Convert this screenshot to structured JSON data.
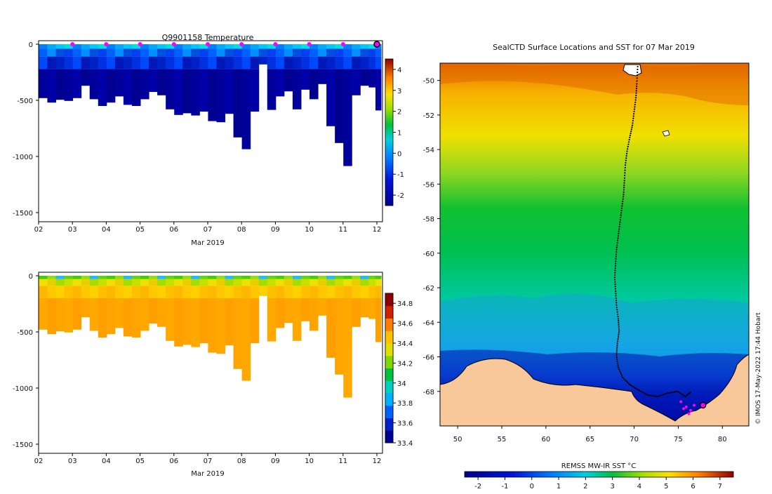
{
  "chart_data": [
    {
      "type": "heatmap",
      "title": "Q9901158  Temperature",
      "xlabel": "Mar 2019",
      "x_ticks": [
        "02",
        "03",
        "04",
        "05",
        "06",
        "07",
        "08",
        "09",
        "10",
        "11",
        "12"
      ],
      "y_ticks": [
        0,
        -500,
        -1000,
        -1500
      ],
      "ylim": [
        -1570,
        10
      ],
      "colorbar": {
        "min": -2.5,
        "max": 4.5,
        "ticks": [
          4,
          3,
          2,
          1,
          0,
          -1,
          -2
        ]
      },
      "marker_days": [
        3,
        4,
        5,
        6,
        7,
        8,
        9,
        10,
        11
      ],
      "profiles": [
        {
          "t": 2.05,
          "d": 480
        },
        {
          "t": 2.3,
          "d": 520
        },
        {
          "t": 2.55,
          "d": 495
        },
        {
          "t": 2.8,
          "d": 505
        },
        {
          "t": 3.05,
          "d": 480
        },
        {
          "t": 3.3,
          "d": 370
        },
        {
          "t": 3.55,
          "d": 490
        },
        {
          "t": 3.8,
          "d": 550
        },
        {
          "t": 4.05,
          "d": 520
        },
        {
          "t": 4.3,
          "d": 465
        },
        {
          "t": 4.55,
          "d": 540
        },
        {
          "t": 4.8,
          "d": 550
        },
        {
          "t": 5.05,
          "d": 490
        },
        {
          "t": 5.3,
          "d": 425
        },
        {
          "t": 5.55,
          "d": 455
        },
        {
          "t": 5.8,
          "d": 580
        },
        {
          "t": 6.05,
          "d": 630
        },
        {
          "t": 6.3,
          "d": 615
        },
        {
          "t": 6.55,
          "d": 635
        },
        {
          "t": 6.8,
          "d": 600
        },
        {
          "t": 7.05,
          "d": 685
        },
        {
          "t": 7.3,
          "d": 695
        },
        {
          "t": 7.55,
          "d": 620
        },
        {
          "t": 7.8,
          "d": 830
        },
        {
          "t": 8.05,
          "d": 935
        },
        {
          "t": 8.3,
          "d": 600
        },
        {
          "t": 8.55,
          "d": 180
        },
        {
          "t": 8.8,
          "d": 585
        },
        {
          "t": 9.05,
          "d": 465
        },
        {
          "t": 9.3,
          "d": 420
        },
        {
          "t": 9.55,
          "d": 580
        },
        {
          "t": 9.8,
          "d": 405
        },
        {
          "t": 10.05,
          "d": 490
        },
        {
          "t": 10.3,
          "d": 355
        },
        {
          "t": 10.55,
          "d": 730
        },
        {
          "t": 10.8,
          "d": 880
        },
        {
          "t": 11.05,
          "d": 1085
        },
        {
          "t": 11.3,
          "d": 455
        },
        {
          "t": 11.55,
          "d": 370
        },
        {
          "t": 11.8,
          "d": 385
        },
        {
          "t": 12.0,
          "d": 590
        }
      ]
    },
    {
      "type": "heatmap",
      "title": "",
      "xlabel": "Mar 2019",
      "x_ticks": [
        "02",
        "03",
        "04",
        "05",
        "06",
        "07",
        "08",
        "09",
        "10",
        "11",
        "12"
      ],
      "y_ticks": [
        0,
        -500,
        -1000,
        -1500
      ],
      "ylim": [
        -1570,
        10
      ],
      "colorbar": {
        "min": 33.4,
        "max": 34.9,
        "ticks": [
          34.8,
          34.6,
          34.4,
          34.2,
          34,
          33.8,
          33.6,
          33.4
        ]
      }
    },
    {
      "type": "heatmap",
      "title": "SealCTD Surface Locations and SST for 07 Mar 2019",
      "x_ticks": [
        50,
        55,
        60,
        65,
        70,
        75,
        80
      ],
      "y_ticks": [
        -50,
        -52,
        -54,
        -56,
        -58,
        -60,
        -62,
        -64,
        -66,
        -68
      ],
      "xlim": [
        48,
        83
      ],
      "ylim": [
        -70,
        -49
      ],
      "colorbar": {
        "label": "REMSS MW-IR SST °C",
        "min": -2.5,
        "max": 7.5,
        "ticks": [
          -2,
          -1,
          0,
          1,
          2,
          3,
          4,
          5,
          6,
          7
        ]
      },
      "track_points": [
        [
          70.4,
          -49.2
        ],
        [
          70.3,
          -50.2
        ],
        [
          70.2,
          -51.0
        ],
        [
          70.0,
          -51.8
        ],
        [
          69.8,
          -52.6
        ],
        [
          69.5,
          -53.3
        ],
        [
          69.2,
          -54.1
        ],
        [
          69.0,
          -54.9
        ],
        [
          68.9,
          -55.8
        ],
        [
          68.8,
          -56.6
        ],
        [
          68.6,
          -57.4
        ],
        [
          68.4,
          -58.2
        ],
        [
          68.2,
          -59.0
        ],
        [
          68.0,
          -59.8
        ],
        [
          67.9,
          -60.6
        ],
        [
          67.8,
          -61.4
        ],
        [
          67.9,
          -62.2
        ],
        [
          68.0,
          -63.0
        ],
        [
          68.2,
          -63.8
        ],
        [
          68.3,
          -64.5
        ],
        [
          68.1,
          -65.2
        ],
        [
          68.0,
          -65.9
        ],
        [
          68.2,
          -66.6
        ],
        [
          68.7,
          -67.2
        ],
        [
          69.5,
          -67.6
        ],
        [
          70.4,
          -67.9
        ],
        [
          71.5,
          -68.2
        ],
        [
          72.6,
          -68.3
        ],
        [
          73.8,
          -68.1
        ],
        [
          74.9,
          -68.0
        ],
        [
          75.8,
          -68.3
        ],
        [
          76.5,
          -68.0
        ]
      ],
      "magenta_points": [
        [
          75.3,
          -68.6
        ],
        [
          75.9,
          -68.9
        ],
        [
          76.4,
          -69.1
        ],
        [
          76.8,
          -68.8
        ],
        [
          76.2,
          -69.3
        ],
        [
          75.6,
          -69.0
        ]
      ],
      "final_position": [
        77.8,
        -68.8
      ],
      "credit": "© IMOS 17-May-2022 17:44 Hobart"
    }
  ]
}
